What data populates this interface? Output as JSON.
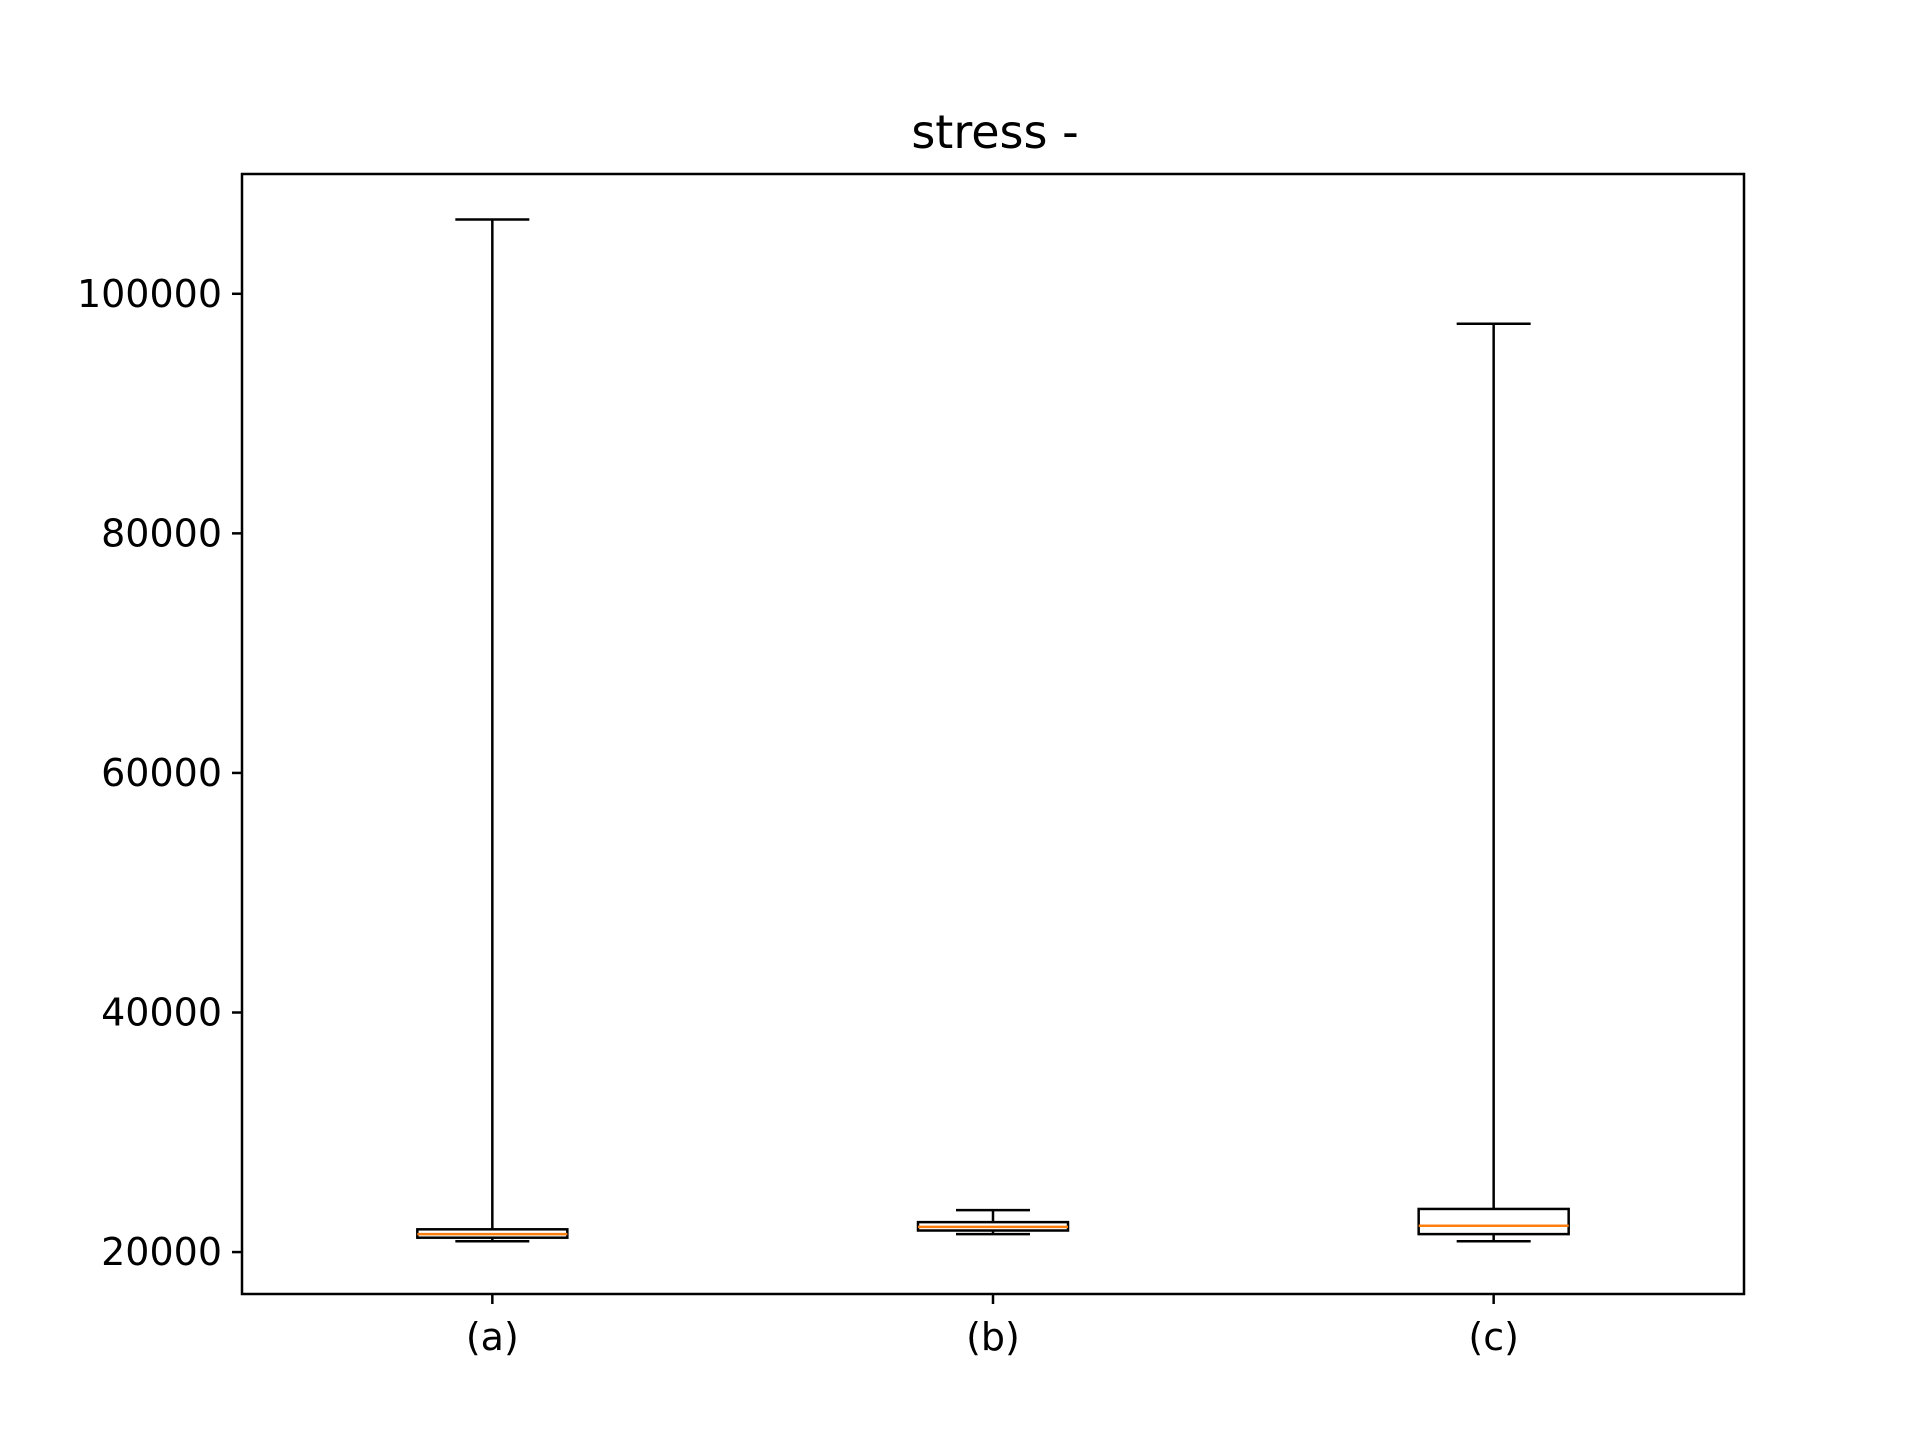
{
  "chart_data": {
    "type": "box",
    "title": "stress -",
    "xlabel": "",
    "ylabel": "",
    "ylim": [
      16500,
      110000
    ],
    "yticks": [
      20000,
      40000,
      60000,
      80000,
      100000
    ],
    "ytick_labels": [
      "20000",
      "40000",
      "60000",
      "80000",
      "100000"
    ],
    "categories": [
      "(a)",
      "(b)",
      "(c)"
    ],
    "boxes": [
      {
        "label": "(a)",
        "whislo": 20900,
        "q1": 21200,
        "median": 21500,
        "q3": 21900,
        "whishi": 106200
      },
      {
        "label": "(b)",
        "whislo": 21500,
        "q1": 21800,
        "median": 22100,
        "q3": 22500,
        "whishi": 23500
      },
      {
        "label": "(c)",
        "whislo": 20900,
        "q1": 21500,
        "median": 22200,
        "q3": 23600,
        "whishi": 97500
      }
    ],
    "grid": false,
    "colors": {
      "box": "#000000",
      "median": "#ff7f0e",
      "axes": "#000000"
    }
  }
}
